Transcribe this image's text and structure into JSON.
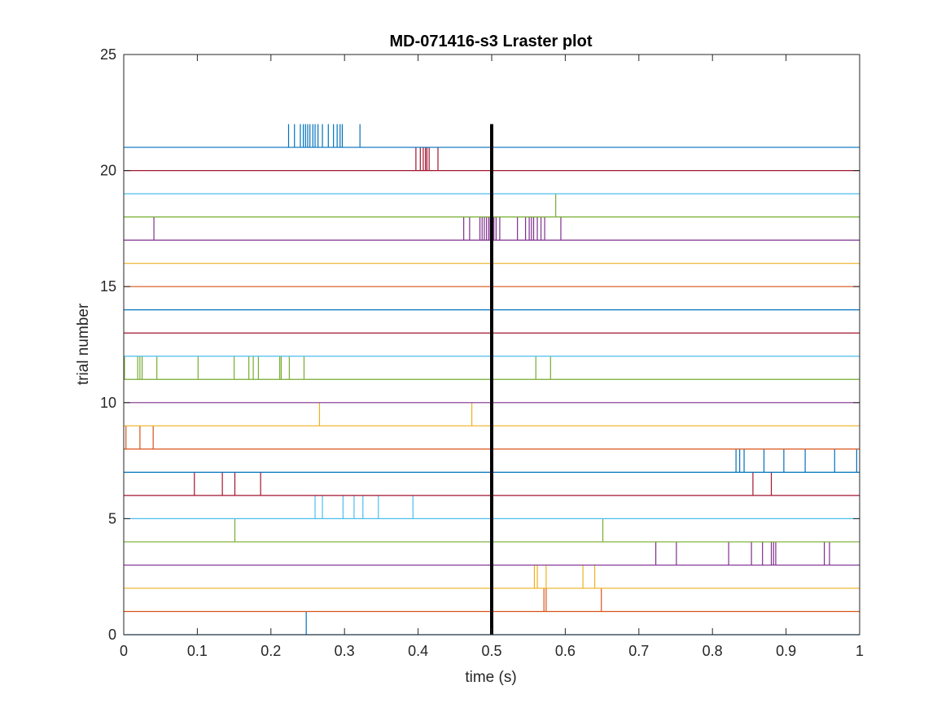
{
  "chart_data": {
    "type": "raster",
    "title": "MD-071416-s3 Lraster plot",
    "xlabel": "time (s)",
    "ylabel": "trial number",
    "xlim": [
      0,
      1
    ],
    "ylim": [
      0,
      25
    ],
    "xticks": [
      "0",
      "0.1",
      "0.2",
      "0.3",
      "0.4",
      "0.5",
      "0.6",
      "0.7",
      "0.8",
      "0.9",
      "1"
    ],
    "yticks": [
      "0",
      "5",
      "10",
      "15",
      "20",
      "25"
    ],
    "grid": false,
    "legend": "none",
    "event_marker": {
      "time": 0.5,
      "y_from": 0,
      "y_to": 22,
      "color": "#000000"
    },
    "colors": [
      "#0072BD",
      "#D95319",
      "#EDB120",
      "#7E2F8E",
      "#77AC30",
      "#4DBEEE",
      "#A2142F"
    ],
    "trials": [
      {
        "trial": 1,
        "color": "#0072BD",
        "spikes": [
          0.248
        ]
      },
      {
        "trial": 2,
        "color": "#D95319",
        "spikes": [
          0.571,
          0.574,
          0.649
        ]
      },
      {
        "trial": 3,
        "color": "#EDB120",
        "spikes": [
          0.558,
          0.562,
          0.574,
          0.624,
          0.64
        ]
      },
      {
        "trial": 4,
        "color": "#7E2F8E",
        "spikes": [
          0.723,
          0.751,
          0.822,
          0.853,
          0.868,
          0.88,
          0.883,
          0.886,
          0.952,
          0.959
        ]
      },
      {
        "trial": 5,
        "color": "#77AC30",
        "spikes": [
          0.151,
          0.651
        ]
      },
      {
        "trial": 6,
        "color": "#4DBEEE",
        "spikes": [
          0.26,
          0.27,
          0.298,
          0.313,
          0.325,
          0.346,
          0.393
        ]
      },
      {
        "trial": 7,
        "color": "#A2142F",
        "spikes": [
          0.096,
          0.134,
          0.151,
          0.186,
          0.855,
          0.88
        ]
      },
      {
        "trial": 8,
        "color": "#0072BD",
        "spikes": [
          0.832,
          0.837,
          0.843,
          0.87,
          0.897,
          0.926,
          0.966,
          0.996
        ]
      },
      {
        "trial": 9,
        "color": "#D95319",
        "spikes": [
          0.003,
          0.022,
          0.04
        ]
      },
      {
        "trial": 10,
        "color": "#EDB120",
        "spikes": [
          0.266,
          0.473
        ]
      },
      {
        "trial": 11,
        "color": "#7E2F8E",
        "spikes": []
      },
      {
        "trial": 12,
        "color": "#77AC30",
        "spikes": [
          0.001,
          0.019,
          0.022,
          0.025,
          0.045,
          0.101,
          0.15,
          0.17,
          0.176,
          0.183,
          0.212,
          0.214,
          0.225,
          0.245,
          0.56,
          0.58
        ]
      },
      {
        "trial": 13,
        "color": "#4DBEEE",
        "spikes": []
      },
      {
        "trial": 14,
        "color": "#A2142F",
        "spikes": []
      },
      {
        "trial": 15,
        "color": "#0072BD",
        "spikes": []
      },
      {
        "trial": 16,
        "color": "#D95319",
        "spikes": []
      },
      {
        "trial": 17,
        "color": "#EDB120",
        "spikes": []
      },
      {
        "trial": 18,
        "color": "#7E2F8E",
        "spikes": [
          0.041,
          0.462,
          0.47,
          0.484,
          0.487,
          0.49,
          0.493,
          0.496,
          0.498,
          0.503,
          0.506,
          0.511,
          0.535,
          0.546,
          0.551,
          0.554,
          0.557,
          0.562,
          0.567,
          0.572,
          0.594
        ]
      },
      {
        "trial": 19,
        "color": "#77AC30",
        "spikes": [
          0.587
        ]
      },
      {
        "trial": 20,
        "color": "#4DBEEE",
        "spikes": []
      },
      {
        "trial": 21,
        "color": "#A2142F",
        "spikes": [
          0.397,
          0.403,
          0.407,
          0.41,
          0.412,
          0.415,
          0.427
        ]
      },
      {
        "trial": 22,
        "color": "#0072BD",
        "spikes": [
          0.224,
          0.232,
          0.24,
          0.244,
          0.247,
          0.25,
          0.253,
          0.257,
          0.26,
          0.264,
          0.27,
          0.278,
          0.285,
          0.29,
          0.294,
          0.297,
          0.321
        ]
      }
    ]
  }
}
